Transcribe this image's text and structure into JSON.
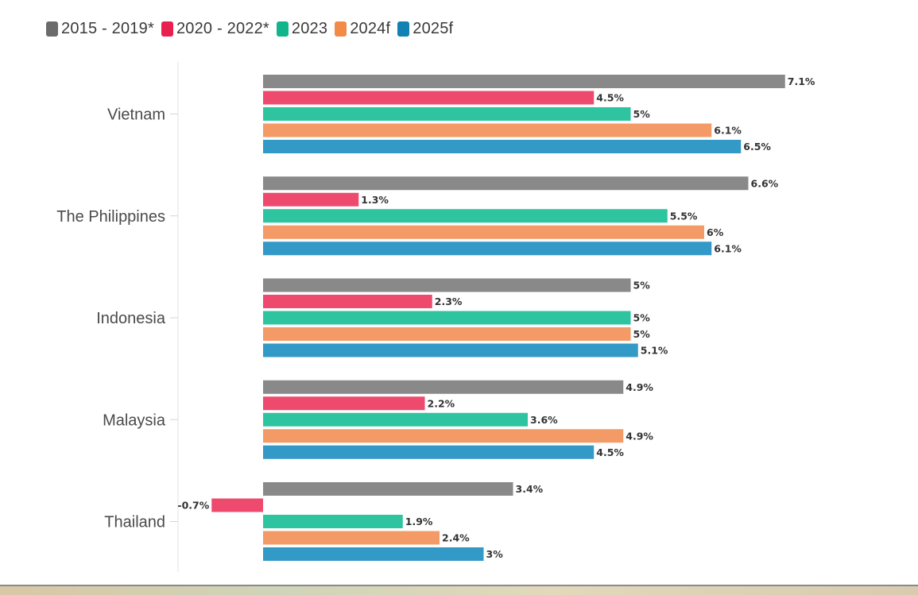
{
  "chart_data": {
    "type": "bar",
    "orientation": "horizontal",
    "categories": [
      "Vietnam",
      "The Philippines",
      "Indonesia",
      "Malaysia",
      "Thailand"
    ],
    "series": [
      {
        "name": "2015 - 2019*",
        "color": "#898989",
        "values": [
          7.1,
          6.6,
          5,
          4.9,
          3.4
        ],
        "labels": [
          "7.1%",
          "6.6%",
          "5%",
          "4.9%",
          "3.4%"
        ]
      },
      {
        "name": "2020 - 2022*",
        "color": "#ee4a6e",
        "values": [
          4.5,
          1.3,
          2.3,
          2.2,
          -0.7
        ],
        "labels": [
          "4.5%",
          "1.3%",
          "2.3%",
          "2.2%",
          "-0.7%"
        ]
      },
      {
        "name": "2023",
        "color": "#2ec4a0",
        "values": [
          5,
          5.5,
          5,
          3.6,
          1.9
        ],
        "labels": [
          "5%",
          "5.5%",
          "5%",
          "3.6%",
          "1.9%"
        ]
      },
      {
        "name": "2024f",
        "color": "#f49a66",
        "values": [
          6.1,
          6,
          5,
          4.9,
          2.4
        ],
        "labels": [
          "6.1%",
          "6%",
          "5%",
          "4.9%",
          "2.4%"
        ]
      },
      {
        "name": "2025f",
        "color": "#3399c6",
        "values": [
          6.5,
          6.1,
          5.1,
          4.5,
          3
        ],
        "labels": [
          "6.5%",
          "6.1%",
          "5.1%",
          "4.5%",
          "3%"
        ]
      }
    ],
    "legend_position": "top-left",
    "grid": false
  },
  "legend_swatch_colors": [
    "#6b6b6b",
    "#e8204e",
    "#12b48c",
    "#f28a48",
    "#1281b3"
  ]
}
